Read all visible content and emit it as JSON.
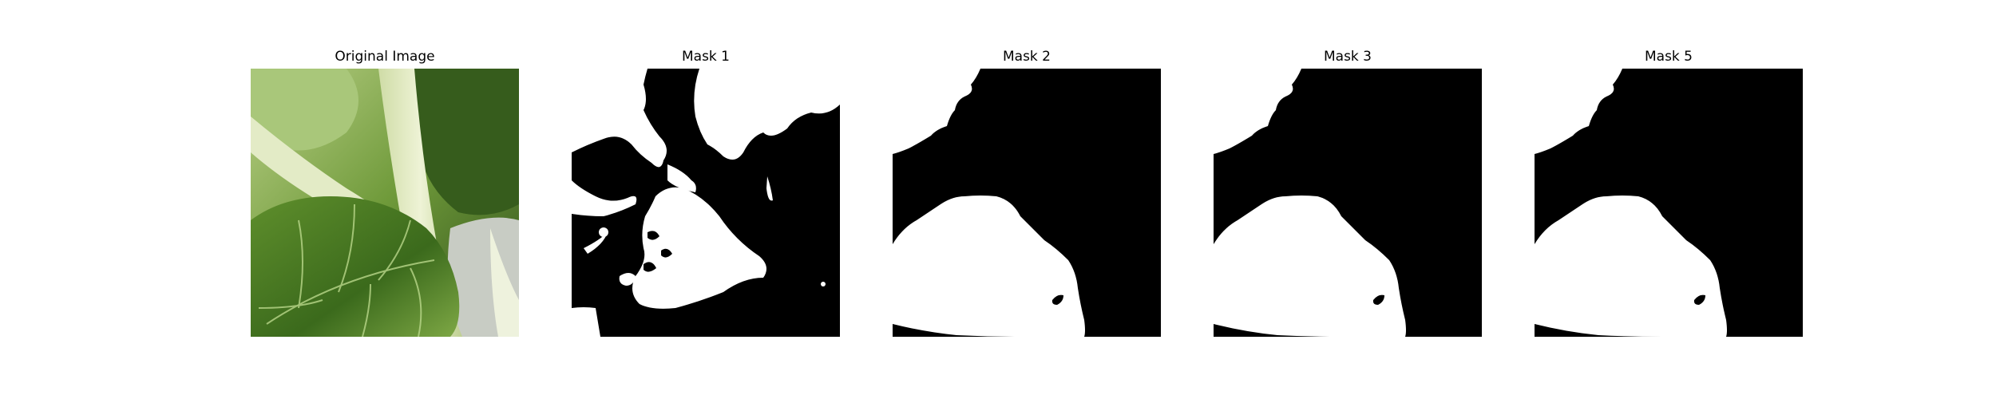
{
  "panels": [
    {
      "title": "Original Image",
      "kind": "photo"
    },
    {
      "title": "Mask 1",
      "kind": "mask-noisy"
    },
    {
      "title": "Mask 2",
      "kind": "mask-clean"
    },
    {
      "title": "Mask 3",
      "kind": "mask-clean"
    },
    {
      "title": "Mask 5",
      "kind": "mask-clean"
    }
  ],
  "colors": {
    "background": "#ffffff",
    "mask_foreground": "#ffffff",
    "mask_background": "#000000",
    "leaf_dark": "#3f6b1f",
    "leaf_light": "#9fc36a",
    "stem": "#dfe8c4"
  }
}
